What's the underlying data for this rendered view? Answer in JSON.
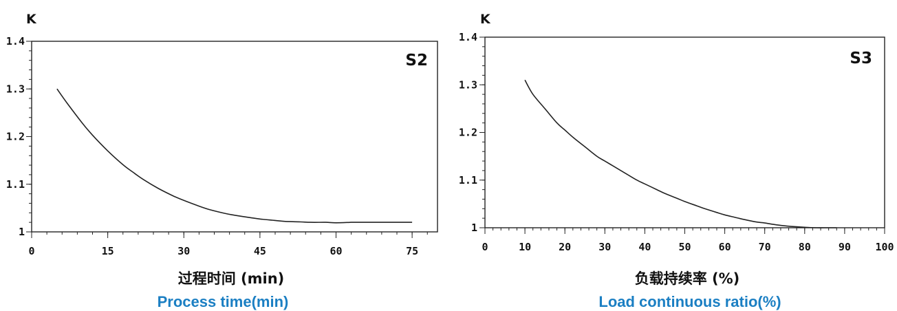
{
  "chart_data": [
    {
      "type": "line",
      "ylabel": "K",
      "panel_label": "S2",
      "xlabel": "过程时间 (min)",
      "xlabel_en": "Process time(min)",
      "xlim": [
        0,
        80
      ],
      "ylim": [
        1.0,
        1.4
      ],
      "xticks": [
        0,
        15,
        30,
        45,
        60,
        75
      ],
      "yticks": [
        1,
        1.1,
        1.2,
        1.3,
        1.4
      ],
      "ytick_labels": [
        "1",
        "1.1",
        "1.2",
        "1.3",
        "1.4"
      ],
      "x_minor_step": 3,
      "y_minor_step": 0.02,
      "grid": false,
      "series": [
        {
          "x": [
            5,
            7,
            10,
            12,
            15,
            18,
            20,
            22,
            25,
            28,
            30,
            33,
            35,
            38,
            40,
            43,
            45,
            48,
            50,
            53,
            55,
            58,
            60,
            63,
            65,
            70,
            75
          ],
          "y": [
            1.3,
            1.27,
            1.228,
            1.203,
            1.17,
            1.141,
            1.125,
            1.11,
            1.091,
            1.075,
            1.066,
            1.054,
            1.047,
            1.039,
            1.035,
            1.03,
            1.027,
            1.024,
            1.022,
            1.021,
            1.02,
            1.02,
            1.019,
            1.02,
            1.02,
            1.02,
            1.02
          ]
        }
      ]
    },
    {
      "type": "line",
      "ylabel": "K",
      "panel_label": "S3",
      "xlabel": "负载持续率 (%)",
      "xlabel_en": "Load continuous ratio(%)",
      "xlim": [
        0,
        100
      ],
      "ylim": [
        1.0,
        1.4
      ],
      "xticks": [
        0,
        10,
        20,
        30,
        40,
        50,
        60,
        70,
        80,
        90,
        100
      ],
      "yticks": [
        1,
        1.1,
        1.2,
        1.3,
        1.4
      ],
      "ytick_labels": [
        "1",
        "1.1",
        "1.2",
        "1.3",
        "1.4"
      ],
      "x_minor_step": 2,
      "y_minor_step": 0.02,
      "grid": false,
      "series": [
        {
          "x": [
            10,
            12,
            15,
            18,
            20,
            22,
            25,
            28,
            30,
            33,
            35,
            38,
            40,
            43,
            45,
            48,
            50,
            53,
            55,
            58,
            60,
            63,
            65,
            68,
            70,
            73,
            75,
            78,
            80,
            83,
            85,
            88
          ],
          "y": [
            1.31,
            1.28,
            1.25,
            1.22,
            1.205,
            1.19,
            1.17,
            1.15,
            1.14,
            1.125,
            1.115,
            1.1,
            1.092,
            1.08,
            1.072,
            1.062,
            1.055,
            1.046,
            1.04,
            1.032,
            1.027,
            1.021,
            1.017,
            1.012,
            1.01,
            1.006,
            1.004,
            1.002,
            1.001,
            1.0,
            1.0,
            1.0
          ]
        }
      ]
    }
  ]
}
